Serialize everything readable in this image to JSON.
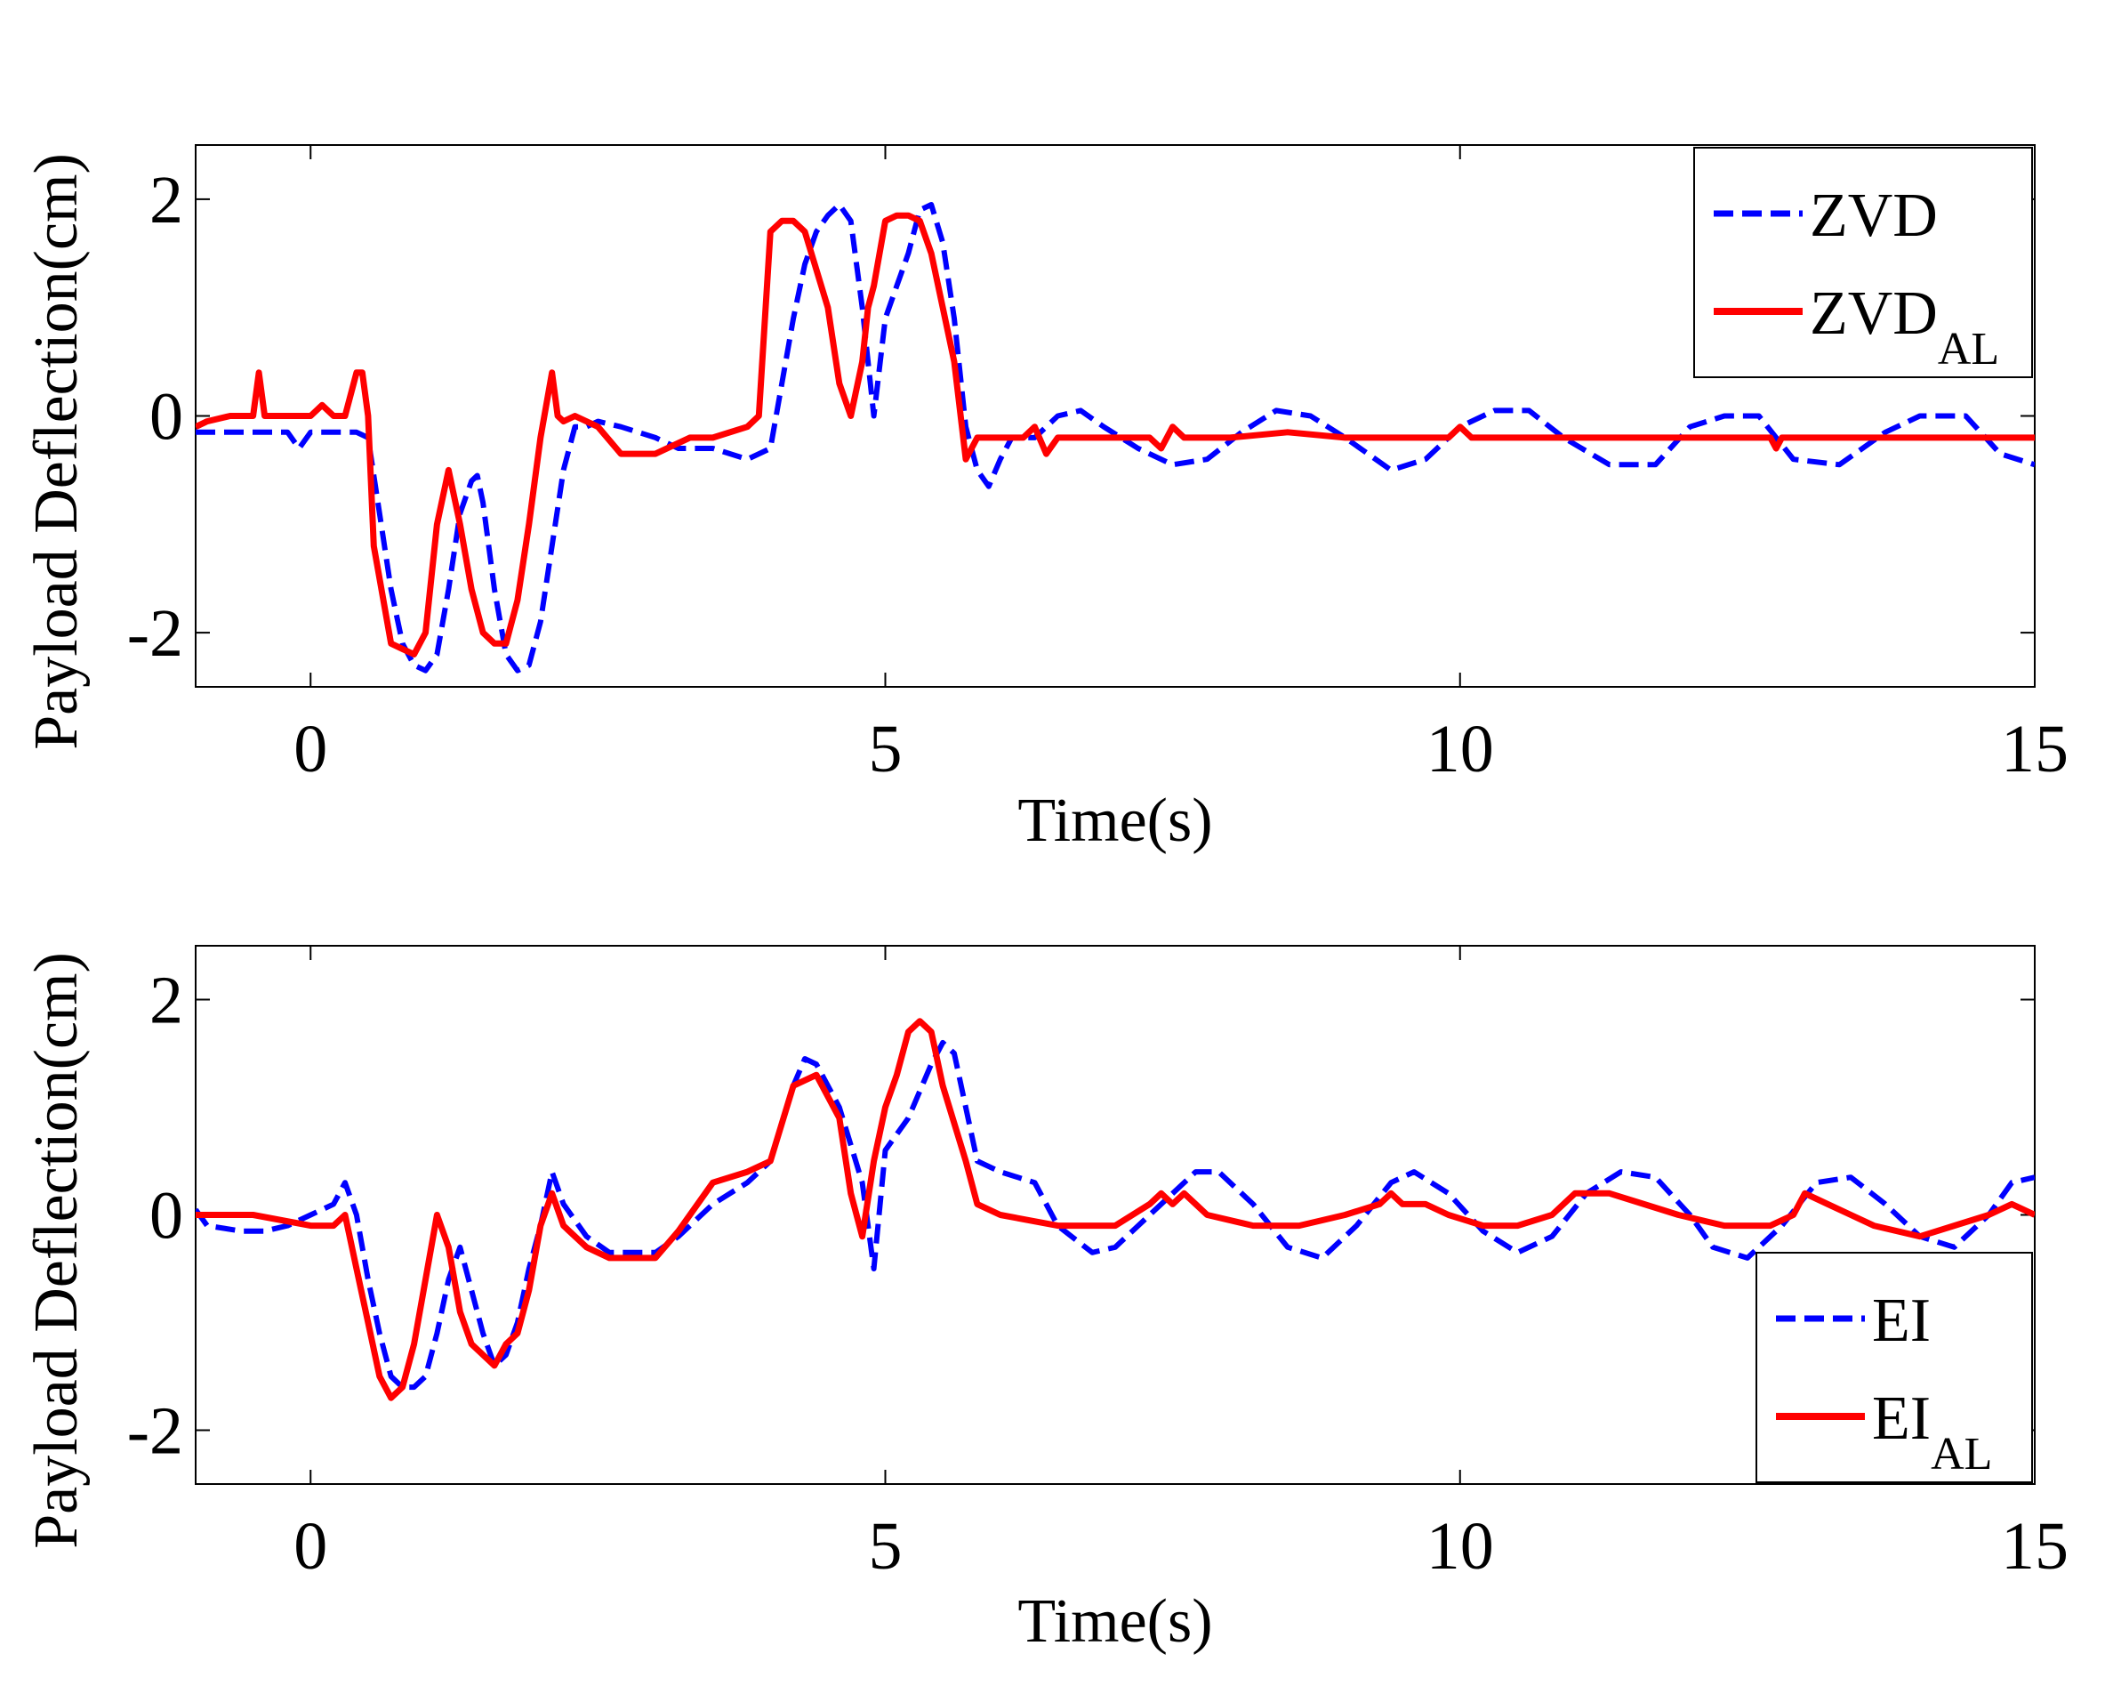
{
  "chart_data": [
    {
      "type": "line",
      "xlabel": "Time(s)",
      "ylabel": "Payload Deflection(cm)",
      "xlim": [
        -1,
        15
      ],
      "ylim": [
        -2.5,
        2.5
      ],
      "xticks": [
        0,
        5,
        10,
        15
      ],
      "yticks": [
        -2,
        0,
        2
      ],
      "xtick_labels": [
        "0",
        "5",
        "10",
        "15"
      ],
      "ytick_labels": [
        "-2",
        "0",
        "2"
      ],
      "grid": false,
      "legend_position": "top-right",
      "series": [
        {
          "name": "ZVD",
          "legend_main": "ZVD",
          "legend_sub": "",
          "color": "#0000ff",
          "style": "dashed",
          "x": [
            -1,
            -0.5,
            -0.2,
            -0.1,
            0,
            0.1,
            0.2,
            0.4,
            0.5,
            0.6,
            0.7,
            0.8,
            0.9,
            1.0,
            1.1,
            1.2,
            1.3,
            1.4,
            1.45,
            1.5,
            1.6,
            1.7,
            1.8,
            1.9,
            2.0,
            2.1,
            2.2,
            2.3,
            2.4,
            2.5,
            2.7,
            3.0,
            3.2,
            3.5,
            3.8,
            4.0,
            4.1,
            4.2,
            4.3,
            4.4,
            4.5,
            4.6,
            4.7,
            4.8,
            4.9,
            5.0,
            5.1,
            5.2,
            5.3,
            5.4,
            5.5,
            5.6,
            5.7,
            5.8,
            5.9,
            6.0,
            6.1,
            6.3,
            6.5,
            6.7,
            6.9,
            7.2,
            7.5,
            7.8,
            8.1,
            8.4,
            8.7,
            9.0,
            9.4,
            9.7,
            10.0,
            10.3,
            10.6,
            10.9,
            11.3,
            11.7,
            12.0,
            12.3,
            12.6,
            12.9,
            13.3,
            13.7,
            14.0,
            14.4,
            14.7,
            15.0
          ],
          "y": [
            -0.15,
            -0.15,
            -0.15,
            -0.3,
            -0.15,
            -0.15,
            -0.15,
            -0.15,
            -0.2,
            -0.9,
            -1.6,
            -2.1,
            -2.3,
            -2.35,
            -2.2,
            -1.6,
            -0.9,
            -0.6,
            -0.55,
            -0.8,
            -1.6,
            -2.2,
            -2.35,
            -2.3,
            -1.9,
            -1.2,
            -0.5,
            -0.1,
            -0.1,
            -0.05,
            -0.1,
            -0.2,
            -0.3,
            -0.3,
            -0.4,
            -0.3,
            0.3,
            0.9,
            1.4,
            1.7,
            1.85,
            1.95,
            1.8,
            1.0,
            0.0,
            0.9,
            1.2,
            1.5,
            1.9,
            1.95,
            1.6,
            0.9,
            -0.1,
            -0.5,
            -0.65,
            -0.4,
            -0.2,
            -0.2,
            0.0,
            0.05,
            -0.1,
            -0.3,
            -0.45,
            -0.4,
            -0.15,
            0.05,
            0.0,
            -0.2,
            -0.5,
            -0.4,
            -0.1,
            0.05,
            0.05,
            -0.2,
            -0.45,
            -0.45,
            -0.1,
            0.0,
            0.0,
            -0.4,
            -0.45,
            -0.15,
            0.0,
            0.0,
            -0.35,
            -0.45
          ]
        },
        {
          "name": "ZVD_AL",
          "legend_main": "ZVD",
          "legend_sub": "AL",
          "color": "#ff0000",
          "style": "solid",
          "x": [
            -1,
            -0.9,
            -0.7,
            -0.5,
            -0.45,
            -0.4,
            -0.2,
            0,
            0.1,
            0.2,
            0.25,
            0.3,
            0.4,
            0.45,
            0.5,
            0.55,
            0.6,
            0.7,
            0.8,
            0.9,
            1.0,
            1.1,
            1.2,
            1.3,
            1.4,
            1.5,
            1.6,
            1.7,
            1.8,
            1.9,
            2.0,
            2.1,
            2.15,
            2.2,
            2.3,
            2.5,
            2.7,
            3.0,
            3.3,
            3.5,
            3.8,
            3.9,
            4.0,
            4.1,
            4.2,
            4.3,
            4.5,
            4.6,
            4.7,
            4.8,
            4.85,
            4.9,
            5.0,
            5.1,
            5.2,
            5.3,
            5.4,
            5.5,
            5.6,
            5.7,
            5.8,
            5.9,
            6.0,
            6.2,
            6.3,
            6.4,
            6.5,
            7.0,
            7.3,
            7.4,
            7.5,
            7.6,
            8.0,
            8.5,
            9.0,
            9.5,
            9.9,
            10.0,
            10.1,
            11.0,
            12.0,
            12.7,
            12.75,
            12.8,
            13.0,
            14.0,
            15.0
          ],
          "y": [
            -0.1,
            -0.05,
            0.0,
            0.0,
            0.4,
            0.0,
            0.0,
            0.0,
            0.1,
            0.0,
            0.0,
            0.0,
            0.4,
            0.4,
            0.0,
            -1.2,
            -1.5,
            -2.1,
            -2.15,
            -2.2,
            -2.0,
            -1.0,
            -0.5,
            -1.0,
            -1.6,
            -2.0,
            -2.1,
            -2.1,
            -1.7,
            -1.0,
            -0.2,
            0.4,
            0.0,
            -0.05,
            0.0,
            -0.1,
            -0.35,
            -0.35,
            -0.2,
            -0.2,
            -0.1,
            0.0,
            1.7,
            1.8,
            1.8,
            1.7,
            1.0,
            0.3,
            0.0,
            0.5,
            1.0,
            1.2,
            1.8,
            1.85,
            1.85,
            1.8,
            1.5,
            1.0,
            0.5,
            -0.4,
            -0.2,
            -0.2,
            -0.2,
            -0.2,
            -0.1,
            -0.35,
            -0.2,
            -0.2,
            -0.2,
            -0.3,
            -0.1,
            -0.2,
            -0.2,
            -0.15,
            -0.2,
            -0.2,
            -0.2,
            -0.1,
            -0.2,
            -0.2,
            -0.2,
            -0.2,
            -0.3,
            -0.2,
            -0.2,
            -0.2,
            -0.2
          ]
        }
      ]
    },
    {
      "type": "line",
      "xlabel": "Time(s)",
      "ylabel": "Payload Deflection(cm)",
      "xlim": [
        -1,
        15
      ],
      "ylim": [
        -2.5,
        2.5
      ],
      "xticks": [
        0,
        5,
        10,
        15
      ],
      "yticks": [
        -2,
        0,
        2
      ],
      "xtick_labels": [
        "0",
        "5",
        "10",
        "15"
      ],
      "ytick_labels": [
        "-2",
        "0",
        "2"
      ],
      "grid": false,
      "legend_position": "bottom-right",
      "series": [
        {
          "name": "EI",
          "legend_main": "EI",
          "legend_sub": "",
          "color": "#0000ff",
          "style": "dashed",
          "x": [
            -1,
            -0.9,
            -0.6,
            -0.4,
            -0.2,
            0,
            0.1,
            0.2,
            0.3,
            0.4,
            0.5,
            0.6,
            0.7,
            0.8,
            0.9,
            1.0,
            1.1,
            1.2,
            1.3,
            1.4,
            1.5,
            1.6,
            1.7,
            1.8,
            1.9,
            2.0,
            2.1,
            2.2,
            2.4,
            2.6,
            3.0,
            3.2,
            3.5,
            3.8,
            4.0,
            4.2,
            4.3,
            4.4,
            4.6,
            4.8,
            4.9,
            5.0,
            5.2,
            5.4,
            5.5,
            5.6,
            5.8,
            6.0,
            6.3,
            6.5,
            6.8,
            7.0,
            7.4,
            7.7,
            7.9,
            8.2,
            8.5,
            8.8,
            9.1,
            9.4,
            9.6,
            9.9,
            10.2,
            10.5,
            10.8,
            11.1,
            11.4,
            11.7,
            12.0,
            12.2,
            12.5,
            12.8,
            13.1,
            13.4,
            13.7,
            14.0,
            14.3,
            14.6,
            14.8,
            15.0
          ],
          "y": [
            0.05,
            -0.1,
            -0.15,
            -0.15,
            -0.1,
            0.0,
            0.05,
            0.1,
            0.3,
            0.0,
            -0.6,
            -1.1,
            -1.5,
            -1.6,
            -1.6,
            -1.5,
            -1.1,
            -0.6,
            -0.3,
            -0.7,
            -1.1,
            -1.4,
            -1.3,
            -1.0,
            -0.5,
            -0.1,
            0.4,
            0.1,
            -0.2,
            -0.35,
            -0.35,
            -0.2,
            0.1,
            0.3,
            0.5,
            1.2,
            1.45,
            1.4,
            1.0,
            0.3,
            -0.5,
            0.6,
            0.9,
            1.4,
            1.6,
            1.5,
            0.5,
            0.4,
            0.3,
            -0.1,
            -0.35,
            -0.3,
            0.1,
            0.4,
            0.4,
            0.1,
            -0.3,
            -0.4,
            -0.1,
            0.3,
            0.4,
            0.2,
            -0.15,
            -0.35,
            -0.2,
            0.2,
            0.4,
            0.35,
            0.0,
            -0.3,
            -0.4,
            -0.1,
            0.3,
            0.35,
            0.1,
            -0.2,
            -0.3,
            0.0,
            0.3,
            0.35
          ]
        },
        {
          "name": "EI_AL",
          "legend_main": "EI",
          "legend_sub": "AL",
          "color": "#ff0000",
          "style": "solid",
          "x": [
            -1,
            -0.5,
            0,
            0.2,
            0.3,
            0.4,
            0.5,
            0.6,
            0.7,
            0.8,
            0.9,
            1.0,
            1.1,
            1.2,
            1.3,
            1.4,
            1.5,
            1.6,
            1.7,
            1.8,
            1.9,
            2.0,
            2.1,
            2.2,
            2.4,
            2.6,
            3.0,
            3.2,
            3.5,
            3.8,
            4.0,
            4.2,
            4.4,
            4.6,
            4.7,
            4.8,
            4.9,
            5.0,
            5.1,
            5.2,
            5.3,
            5.4,
            5.5,
            5.7,
            5.8,
            6.0,
            6.5,
            7.0,
            7.3,
            7.4,
            7.5,
            7.6,
            7.7,
            7.8,
            8.2,
            8.6,
            9.0,
            9.3,
            9.4,
            9.5,
            9.7,
            9.9,
            10.2,
            10.5,
            10.8,
            11.0,
            11.3,
            11.6,
            11.9,
            12.3,
            12.7,
            12.9,
            13.0,
            13.2,
            13.4,
            13.6,
            14.0,
            14.3,
            14.6,
            14.8,
            15.0
          ],
          "y": [
            0.0,
            0.0,
            -0.1,
            -0.1,
            0.0,
            -0.5,
            -1.0,
            -1.5,
            -1.7,
            -1.6,
            -1.2,
            -0.6,
            0.0,
            -0.3,
            -0.9,
            -1.2,
            -1.3,
            -1.4,
            -1.2,
            -1.1,
            -0.7,
            -0.1,
            0.2,
            -0.1,
            -0.3,
            -0.4,
            -0.4,
            -0.15,
            0.3,
            0.4,
            0.5,
            1.2,
            1.3,
            0.9,
            0.2,
            -0.2,
            0.5,
            1.0,
            1.3,
            1.7,
            1.8,
            1.7,
            1.2,
            0.5,
            0.1,
            0.0,
            -0.1,
            -0.1,
            0.1,
            0.2,
            0.1,
            0.2,
            0.1,
            0.0,
            -0.1,
            -0.1,
            0.0,
            0.1,
            0.2,
            0.1,
            0.1,
            0.0,
            -0.1,
            -0.1,
            0.0,
            0.2,
            0.2,
            0.1,
            0.0,
            -0.1,
            -0.1,
            0.0,
            0.2,
            0.1,
            0.0,
            -0.1,
            -0.2,
            -0.1,
            0.0,
            0.1,
            0.0
          ]
        }
      ]
    }
  ]
}
